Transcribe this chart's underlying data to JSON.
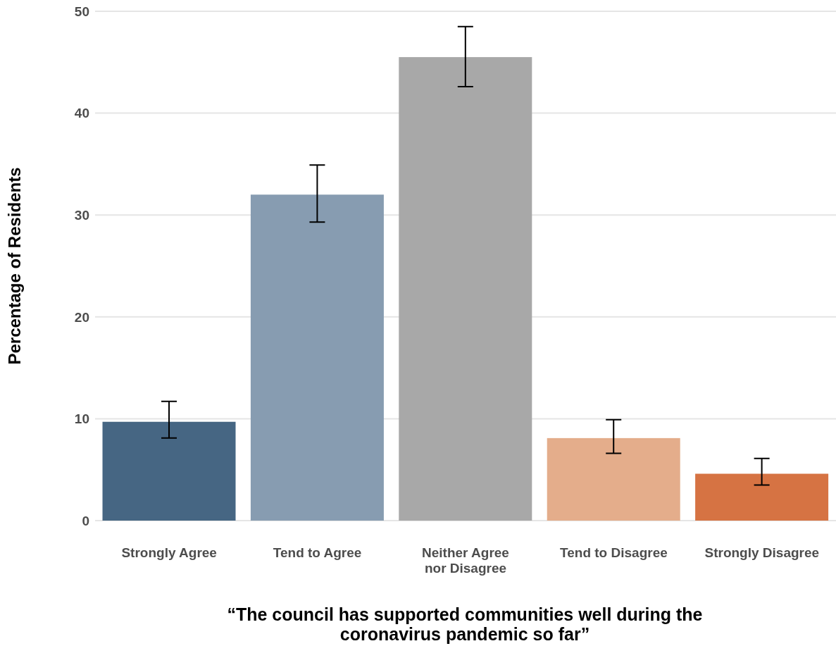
{
  "chart_data": {
    "type": "bar",
    "xlabel": "“The council has supported communities well during the coronavirus pandemic so far”",
    "ylabel": "Percentage of Residents",
    "categories": [
      "Strongly Agree",
      "Tend to Agree",
      "Neither Agree nor Disagree",
      "Tend to Disagree",
      "Strongly Disagree"
    ],
    "values": [
      9.7,
      32.0,
      45.5,
      8.1,
      4.6
    ],
    "colors": [
      "#466683",
      "#879cb1",
      "#a8a8a8",
      "#e4ad8b",
      "#d67343"
    ],
    "errors": [
      [
        8.1,
        11.7
      ],
      [
        29.3,
        34.9
      ],
      [
        42.6,
        48.5
      ],
      [
        6.6,
        9.9
      ],
      [
        3.5,
        6.1
      ]
    ],
    "ylim": [
      0,
      50
    ],
    "yticks": [
      0,
      10,
      20,
      30,
      40,
      50
    ],
    "grid": "y",
    "legend": false
  }
}
